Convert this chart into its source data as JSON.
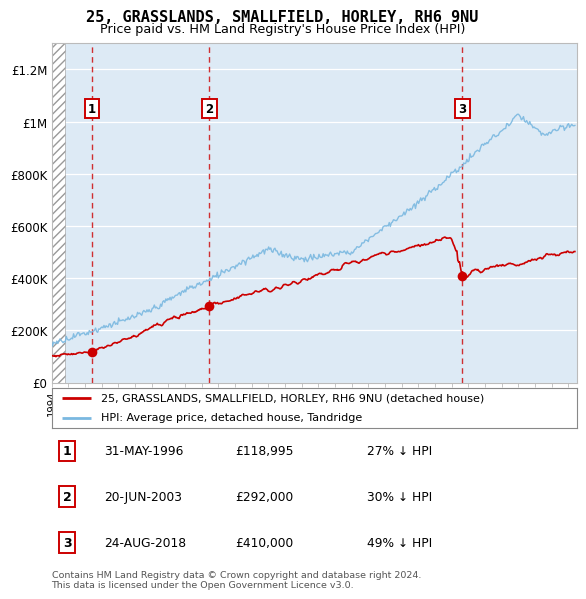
{
  "title": "25, GRASSLANDS, SMALLFIELD, HORLEY, RH6 9NU",
  "subtitle": "Price paid vs. HM Land Registry's House Price Index (HPI)",
  "xlim_start": 1994.0,
  "xlim_end": 2025.5,
  "ylim": [
    0,
    1300000
  ],
  "yticks": [
    0,
    200000,
    400000,
    600000,
    800000,
    1000000,
    1200000
  ],
  "ytick_labels": [
    "£0",
    "£200K",
    "£400K",
    "£600K",
    "£800K",
    "£1M",
    "£1.2M"
  ],
  "sale_dates": [
    1996.42,
    2003.47,
    2018.65
  ],
  "sale_prices": [
    118995,
    292000,
    410000
  ],
  "sale_labels": [
    "1",
    "2",
    "3"
  ],
  "hpi_color": "#7ab8e0",
  "sale_color": "#cc0000",
  "vline_color": "#cc0000",
  "legend_sale_label": "25, GRASSLANDS, SMALLFIELD, HORLEY, RH6 9NU (detached house)",
  "legend_hpi_label": "HPI: Average price, detached house, Tandridge",
  "table_data": [
    [
      "1",
      "31-MAY-1996",
      "£118,995",
      "27% ↓ HPI"
    ],
    [
      "2",
      "20-JUN-2003",
      "£292,000",
      "30% ↓ HPI"
    ],
    [
      "3",
      "24-AUG-2018",
      "£410,000",
      "49% ↓ HPI"
    ]
  ],
  "footer": "Contains HM Land Registry data © Crown copyright and database right 2024.\nThis data is licensed under the Open Government Licence v3.0.",
  "hatch_region_start": 1994.0,
  "hatch_region_end": 1994.83
}
